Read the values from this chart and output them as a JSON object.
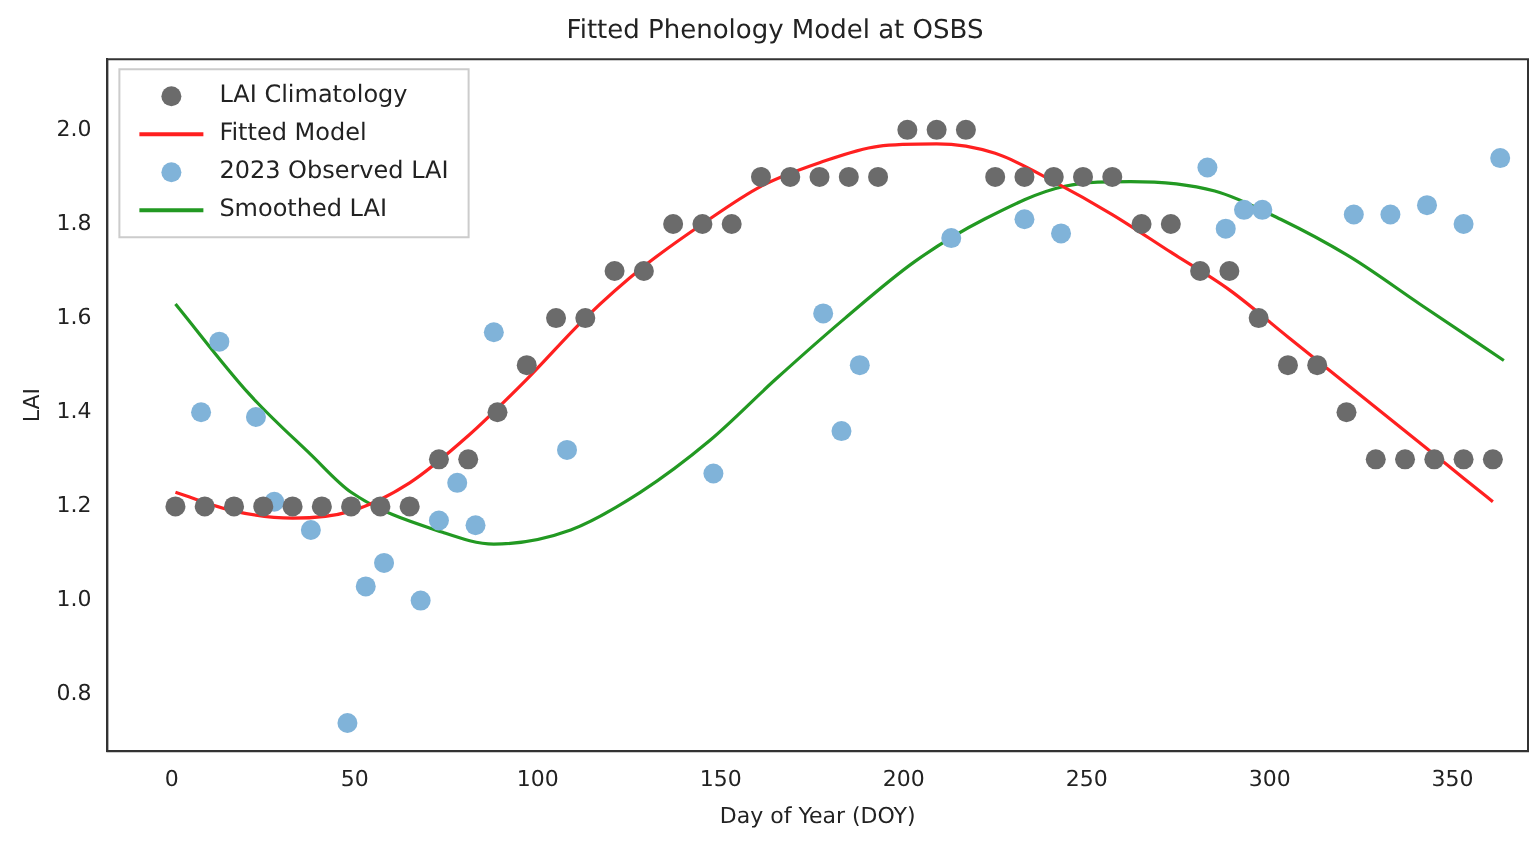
{
  "chart_data": {
    "type": "scatter",
    "title": "Fitted Phenology Model at OSBS",
    "xlabel": "Day of Year (DOY)",
    "ylabel": "LAI",
    "xlim": [
      -17.6,
      370.6
    ],
    "xticks": [
      0,
      50,
      100,
      150,
      200,
      250,
      300,
      350
    ],
    "ylim": [
      0.68,
      2.15
    ],
    "yticks": [
      0.8,
      {
        "value": 1,
        "label": "1.0"
      },
      1.2,
      1.4,
      1.6,
      1.8,
      {
        "value": 2,
        "label": "2.0"
      }
    ],
    "grid": false,
    "legend": "top left",
    "series": [
      {
        "name": "LAI Climatology",
        "type": "scatter",
        "marker": "circle",
        "color": "#6b6b6b",
        "x": [
          1,
          9,
          17,
          25,
          33,
          41,
          49,
          57,
          65,
          73,
          81,
          89,
          97,
          105,
          113,
          121,
          129,
          137,
          145,
          153,
          161,
          169,
          177,
          185,
          193,
          201,
          209,
          217,
          225,
          233,
          241,
          249,
          257,
          265,
          273,
          281,
          289,
          297,
          305,
          313,
          321,
          329,
          337,
          345,
          353,
          361
        ],
        "values": [
          1.2,
          1.2,
          1.2,
          1.2,
          1.2,
          1.2,
          1.2,
          1.2,
          1.2,
          1.3,
          1.3,
          1.4,
          1.5,
          1.6,
          1.6,
          1.7,
          1.7,
          1.8,
          1.8,
          1.8,
          1.9,
          1.9,
          1.9,
          1.9,
          1.9,
          2.0,
          2.0,
          2.0,
          1.9,
          1.9,
          1.9,
          1.9,
          1.9,
          1.8,
          1.8,
          1.7,
          1.7,
          1.6,
          1.5,
          1.5,
          1.4,
          1.3,
          1.3,
          1.3,
          1.3,
          1.3
        ]
      },
      {
        "name": "Fitted Model",
        "type": "line",
        "marker": "none",
        "line_style": "solid",
        "color": "#ff2020",
        "x": [
          1,
          17,
          33,
          49,
          65,
          81,
          97,
          113,
          129,
          145,
          161,
          177,
          193,
          209,
          225,
          241,
          257,
          273,
          289,
          305,
          321,
          337,
          353,
          361
        ],
        "values": [
          1.23,
          1.19,
          1.175,
          1.19,
          1.25,
          1.35,
          1.47,
          1.6,
          1.71,
          1.8,
          1.88,
          1.93,
          1.965,
          1.97,
          1.95,
          1.89,
          1.82,
          1.74,
          1.66,
          1.56,
          1.46,
          1.36,
          1.26,
          1.21
        ]
      },
      {
        "name": "2023 Observed LAI",
        "type": "scatter",
        "marker": "circle",
        "color": "#80b3d9",
        "x": [
          8,
          13,
          23,
          28,
          38,
          48,
          53,
          58,
          68,
          73,
          78,
          83,
          88,
          108,
          148,
          178,
          183,
          188,
          213,
          233,
          243,
          283,
          288,
          293,
          298,
          323,
          333,
          343,
          353,
          363
        ],
        "values": [
          1.4,
          1.55,
          1.39,
          1.21,
          1.15,
          0.74,
          1.03,
          1.08,
          1.0,
          1.17,
          1.25,
          1.16,
          1.57,
          1.32,
          1.27,
          1.61,
          1.36,
          1.5,
          1.77,
          1.81,
          1.78,
          1.92,
          1.79,
          1.83,
          1.83,
          1.82,
          1.82,
          1.84,
          1.8,
          1.94
        ]
      },
      {
        "name": "Smoothed LAI",
        "type": "line",
        "marker": "none",
        "line_style": "solid",
        "color": "#229922",
        "x": [
          1,
          21,
          38,
          49,
          74,
          88,
          109,
          128,
          147,
          165,
          184,
          203,
          222,
          244,
          262,
          285,
          303,
          322,
          341,
          364
        ],
        "values": [
          1.63,
          1.44,
          1.31,
          1.23,
          1.145,
          1.12,
          1.15,
          1.23,
          1.34,
          1.47,
          1.6,
          1.72,
          1.81,
          1.88,
          1.89,
          1.87,
          1.81,
          1.73,
          1.63,
          1.51
        ]
      }
    ]
  }
}
